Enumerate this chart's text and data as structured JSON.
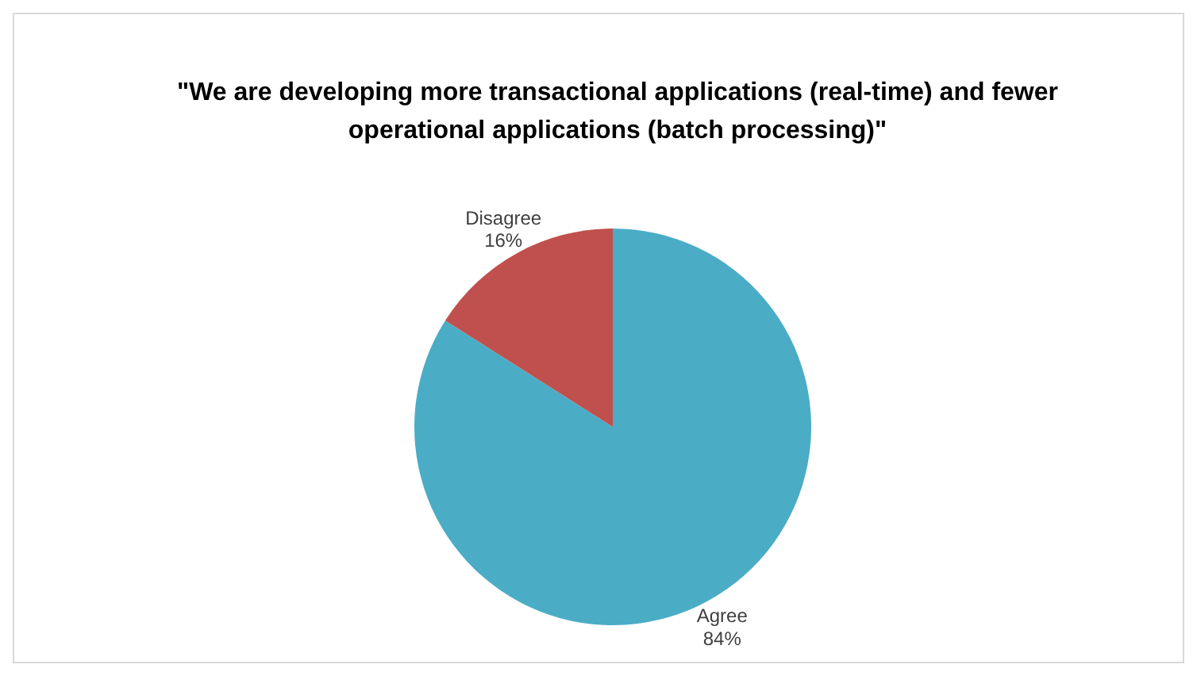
{
  "chart_data": {
    "type": "pie",
    "title": "\"We are developing more transactional applications (real-time) and fewer operational applications (batch processing)\"",
    "categories": [
      "Agree",
      "Disagree"
    ],
    "values": [
      84,
      16
    ],
    "colors": [
      "#4bacc6",
      "#c0504d"
    ],
    "value_labels": [
      "84%",
      "16%"
    ]
  }
}
